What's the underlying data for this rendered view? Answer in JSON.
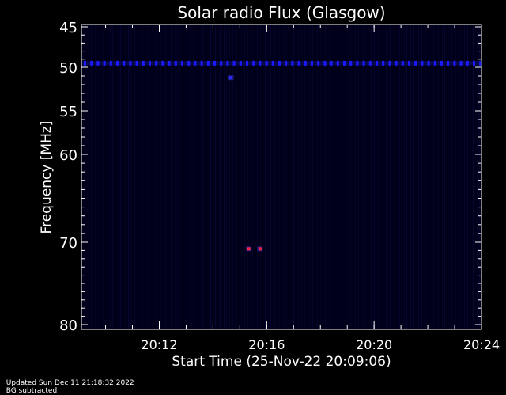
{
  "chart_data": {
    "type": "heatmap",
    "title": "Solar radio Flux (Glasgow)",
    "xlabel": "Start Time (25-Nov-22 20:09:06)",
    "ylabel": "Frequency [MHz]",
    "x_unit": "time (HH:MM, 25-Nov-22)",
    "xlim": [
      "20:09:06",
      "20:24:00"
    ],
    "ylim": [
      45,
      80
    ],
    "y_axis_reversed": true,
    "x_ticks": [
      "20:12",
      "20:16",
      "20:20",
      "20:24"
    ],
    "y_ticks": [
      45,
      50,
      55,
      60,
      70,
      80
    ],
    "y_scale": "nonlinear",
    "background_color": "#000000",
    "features": [
      {
        "kind": "interference-band",
        "frequency_mhz": 49.5,
        "time_start": "20:09:06",
        "time_end": "20:24:00",
        "color": "#1a1aff"
      },
      {
        "kind": "spot",
        "frequency_mhz": 51.2,
        "time": "20:14:40",
        "color": "#2a2aff"
      },
      {
        "kind": "spot",
        "frequency_mhz": 70.8,
        "time": "20:15:20",
        "color": "#ff2040"
      },
      {
        "kind": "spot",
        "frequency_mhz": 70.8,
        "time": "20:15:45",
        "color": "#ff2040"
      }
    ]
  },
  "footer": {
    "updated": "Updated Sun Dec 11 21:18:32 2022",
    "note": "BG subtracted"
  }
}
